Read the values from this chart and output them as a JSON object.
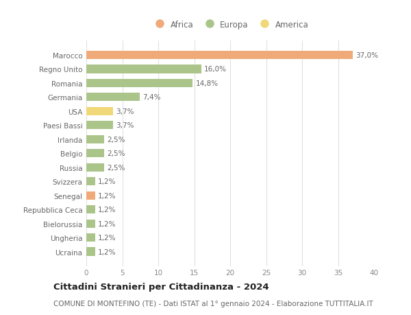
{
  "countries": [
    "Marocco",
    "Regno Unito",
    "Romania",
    "Germania",
    "USA",
    "Paesi Bassi",
    "Irlanda",
    "Belgio",
    "Russia",
    "Svizzera",
    "Senegal",
    "Repubblica Ceca",
    "Bielorussia",
    "Ungheria",
    "Ucraina"
  ],
  "values": [
    37.0,
    16.0,
    14.8,
    7.4,
    3.7,
    3.7,
    2.5,
    2.5,
    2.5,
    1.2,
    1.2,
    1.2,
    1.2,
    1.2,
    1.2
  ],
  "labels": [
    "37,0%",
    "16,0%",
    "14,8%",
    "7,4%",
    "3,7%",
    "3,7%",
    "2,5%",
    "2,5%",
    "2,5%",
    "1,2%",
    "1,2%",
    "1,2%",
    "1,2%",
    "1,2%",
    "1,2%"
  ],
  "continents": [
    "Africa",
    "Europa",
    "Europa",
    "Europa",
    "America",
    "Europa",
    "Europa",
    "Europa",
    "Europa",
    "Europa",
    "Africa",
    "Europa",
    "Europa",
    "Europa",
    "Europa"
  ],
  "colors": {
    "Africa": "#f0aa7a",
    "Europa": "#aac48a",
    "America": "#f0d878"
  },
  "xlim": [
    0,
    40
  ],
  "xticks": [
    0,
    5,
    10,
    15,
    20,
    25,
    30,
    35,
    40
  ],
  "title": "Cittadini Stranieri per Cittadinanza - 2024",
  "subtitle": "COMUNE DI MONTEFINO (TE) - Dati ISTAT al 1° gennaio 2024 - Elaborazione TUTTITALIA.IT",
  "bg_color": "#ffffff",
  "grid_color": "#e0e0e0",
  "bar_height": 0.6,
  "label_fontsize": 7.5,
  "ytick_fontsize": 7.5,
  "xtick_fontsize": 7.5,
  "title_fontsize": 9.5,
  "subtitle_fontsize": 7.5,
  "legend_fontsize": 8.5
}
